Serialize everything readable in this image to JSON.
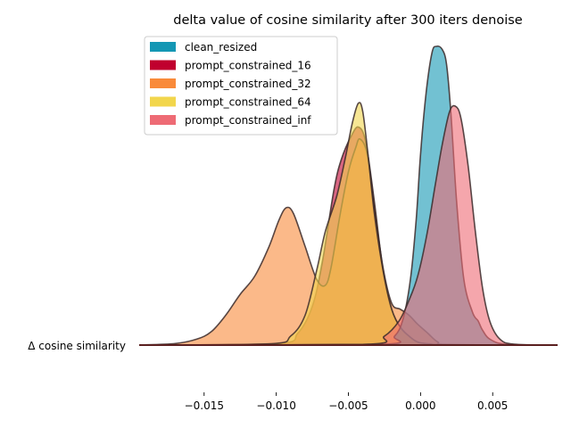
{
  "chart_data": {
    "type": "area",
    "title": "delta value of cosine similarity after 300 iters denoise",
    "ylabel": "Δ cosine similarity",
    "xlabel": "",
    "xlim": [
      -0.0195,
      0.0095
    ],
    "ylim": [
      0,
      1.0
    ],
    "x_ticks": [
      -0.015,
      -0.01,
      -0.005,
      0.0,
      0.005
    ],
    "x_tick_labels": [
      "−0.015",
      "−0.010",
      "−0.005",
      "0.000",
      "0.005"
    ],
    "grid": false,
    "legend_position": "top-left",
    "series": [
      {
        "name": "prompt_constrained_16",
        "color": "#c0002e",
        "x": [
          -0.0195,
          -0.01,
          -0.0085,
          -0.0075,
          -0.0068,
          -0.006,
          -0.0055,
          -0.0048,
          -0.0043,
          -0.0038,
          -0.0032,
          -0.0026,
          -0.002,
          -0.0014,
          -0.0008,
          -0.0002,
          0.0006,
          0.002,
          0.0095
        ],
        "y": [
          0,
          0.005,
          0.04,
          0.13,
          0.28,
          0.52,
          0.62,
          0.7,
          0.73,
          0.68,
          0.48,
          0.25,
          0.12,
          0.06,
          0.03,
          0.01,
          0.004,
          0.001,
          0
        ]
      },
      {
        "name": "prompt_constrained_32",
        "color": "#f98a3a",
        "x": [
          -0.0195,
          -0.017,
          -0.0155,
          -0.0145,
          -0.0135,
          -0.0125,
          -0.0115,
          -0.0105,
          -0.0098,
          -0.0093,
          -0.0088,
          -0.008,
          -0.0072,
          -0.0066,
          -0.0062,
          -0.0056,
          -0.005,
          -0.0045,
          -0.0042,
          -0.0037,
          -0.0032,
          -0.0026,
          -0.002,
          -0.0014,
          -0.0008,
          -0.0002,
          0.0005,
          0.0012,
          0.002,
          0.0095
        ],
        "y": [
          0,
          0.005,
          0.02,
          0.045,
          0.1,
          0.17,
          0.23,
          0.33,
          0.42,
          0.46,
          0.44,
          0.33,
          0.22,
          0.2,
          0.26,
          0.43,
          0.58,
          0.66,
          0.69,
          0.64,
          0.46,
          0.26,
          0.14,
          0.12,
          0.1,
          0.07,
          0.04,
          0.01,
          0.002,
          0
        ]
      },
      {
        "name": "prompt_constrained_64",
        "color": "#f2d64c",
        "x": [
          -0.0195,
          -0.0105,
          -0.009,
          -0.008,
          -0.0072,
          -0.0066,
          -0.0058,
          -0.0052,
          -0.0047,
          -0.0043,
          -0.004,
          -0.0036,
          -0.0032,
          -0.0026,
          -0.002,
          -0.0014,
          -0.0008,
          -0.0002,
          0.0006,
          0.002,
          0.0095
        ],
        "y": [
          0,
          0.004,
          0.03,
          0.1,
          0.25,
          0.38,
          0.5,
          0.63,
          0.75,
          0.81,
          0.78,
          0.62,
          0.44,
          0.25,
          0.12,
          0.06,
          0.03,
          0.01,
          0.004,
          0.001,
          0
        ]
      },
      {
        "name": "clean_resized",
        "color": "#1497b4",
        "x": [
          -0.0195,
          -0.003,
          -0.0018,
          -0.0012,
          -0.0007,
          -0.0003,
          0.0,
          0.0004,
          0.0008,
          0.0011,
          0.0015,
          0.0018,
          0.0021,
          0.0025,
          0.003,
          0.0036,
          0.004,
          0.0043,
          0.0048,
          0.006,
          0.0095
        ],
        "y": [
          0,
          0.002,
          0.03,
          0.09,
          0.22,
          0.42,
          0.64,
          0.85,
          0.98,
          1.0,
          0.99,
          0.94,
          0.78,
          0.48,
          0.22,
          0.11,
          0.08,
          0.05,
          0.02,
          0.002,
          0
        ]
      },
      {
        "name": "prompt_constrained_inf",
        "color": "#ee6b75",
        "x": [
          -0.0195,
          -0.004,
          -0.0025,
          -0.0015,
          -0.0008,
          -0.0002,
          0.0004,
          0.001,
          0.0015,
          0.002,
          0.0024,
          0.0028,
          0.0033,
          0.0038,
          0.0043,
          0.0048,
          0.0055,
          0.0065,
          0.0095
        ],
        "y": [
          0,
          0.002,
          0.03,
          0.08,
          0.15,
          0.23,
          0.36,
          0.53,
          0.67,
          0.78,
          0.8,
          0.76,
          0.6,
          0.38,
          0.19,
          0.08,
          0.02,
          0.003,
          0
        ]
      }
    ]
  }
}
